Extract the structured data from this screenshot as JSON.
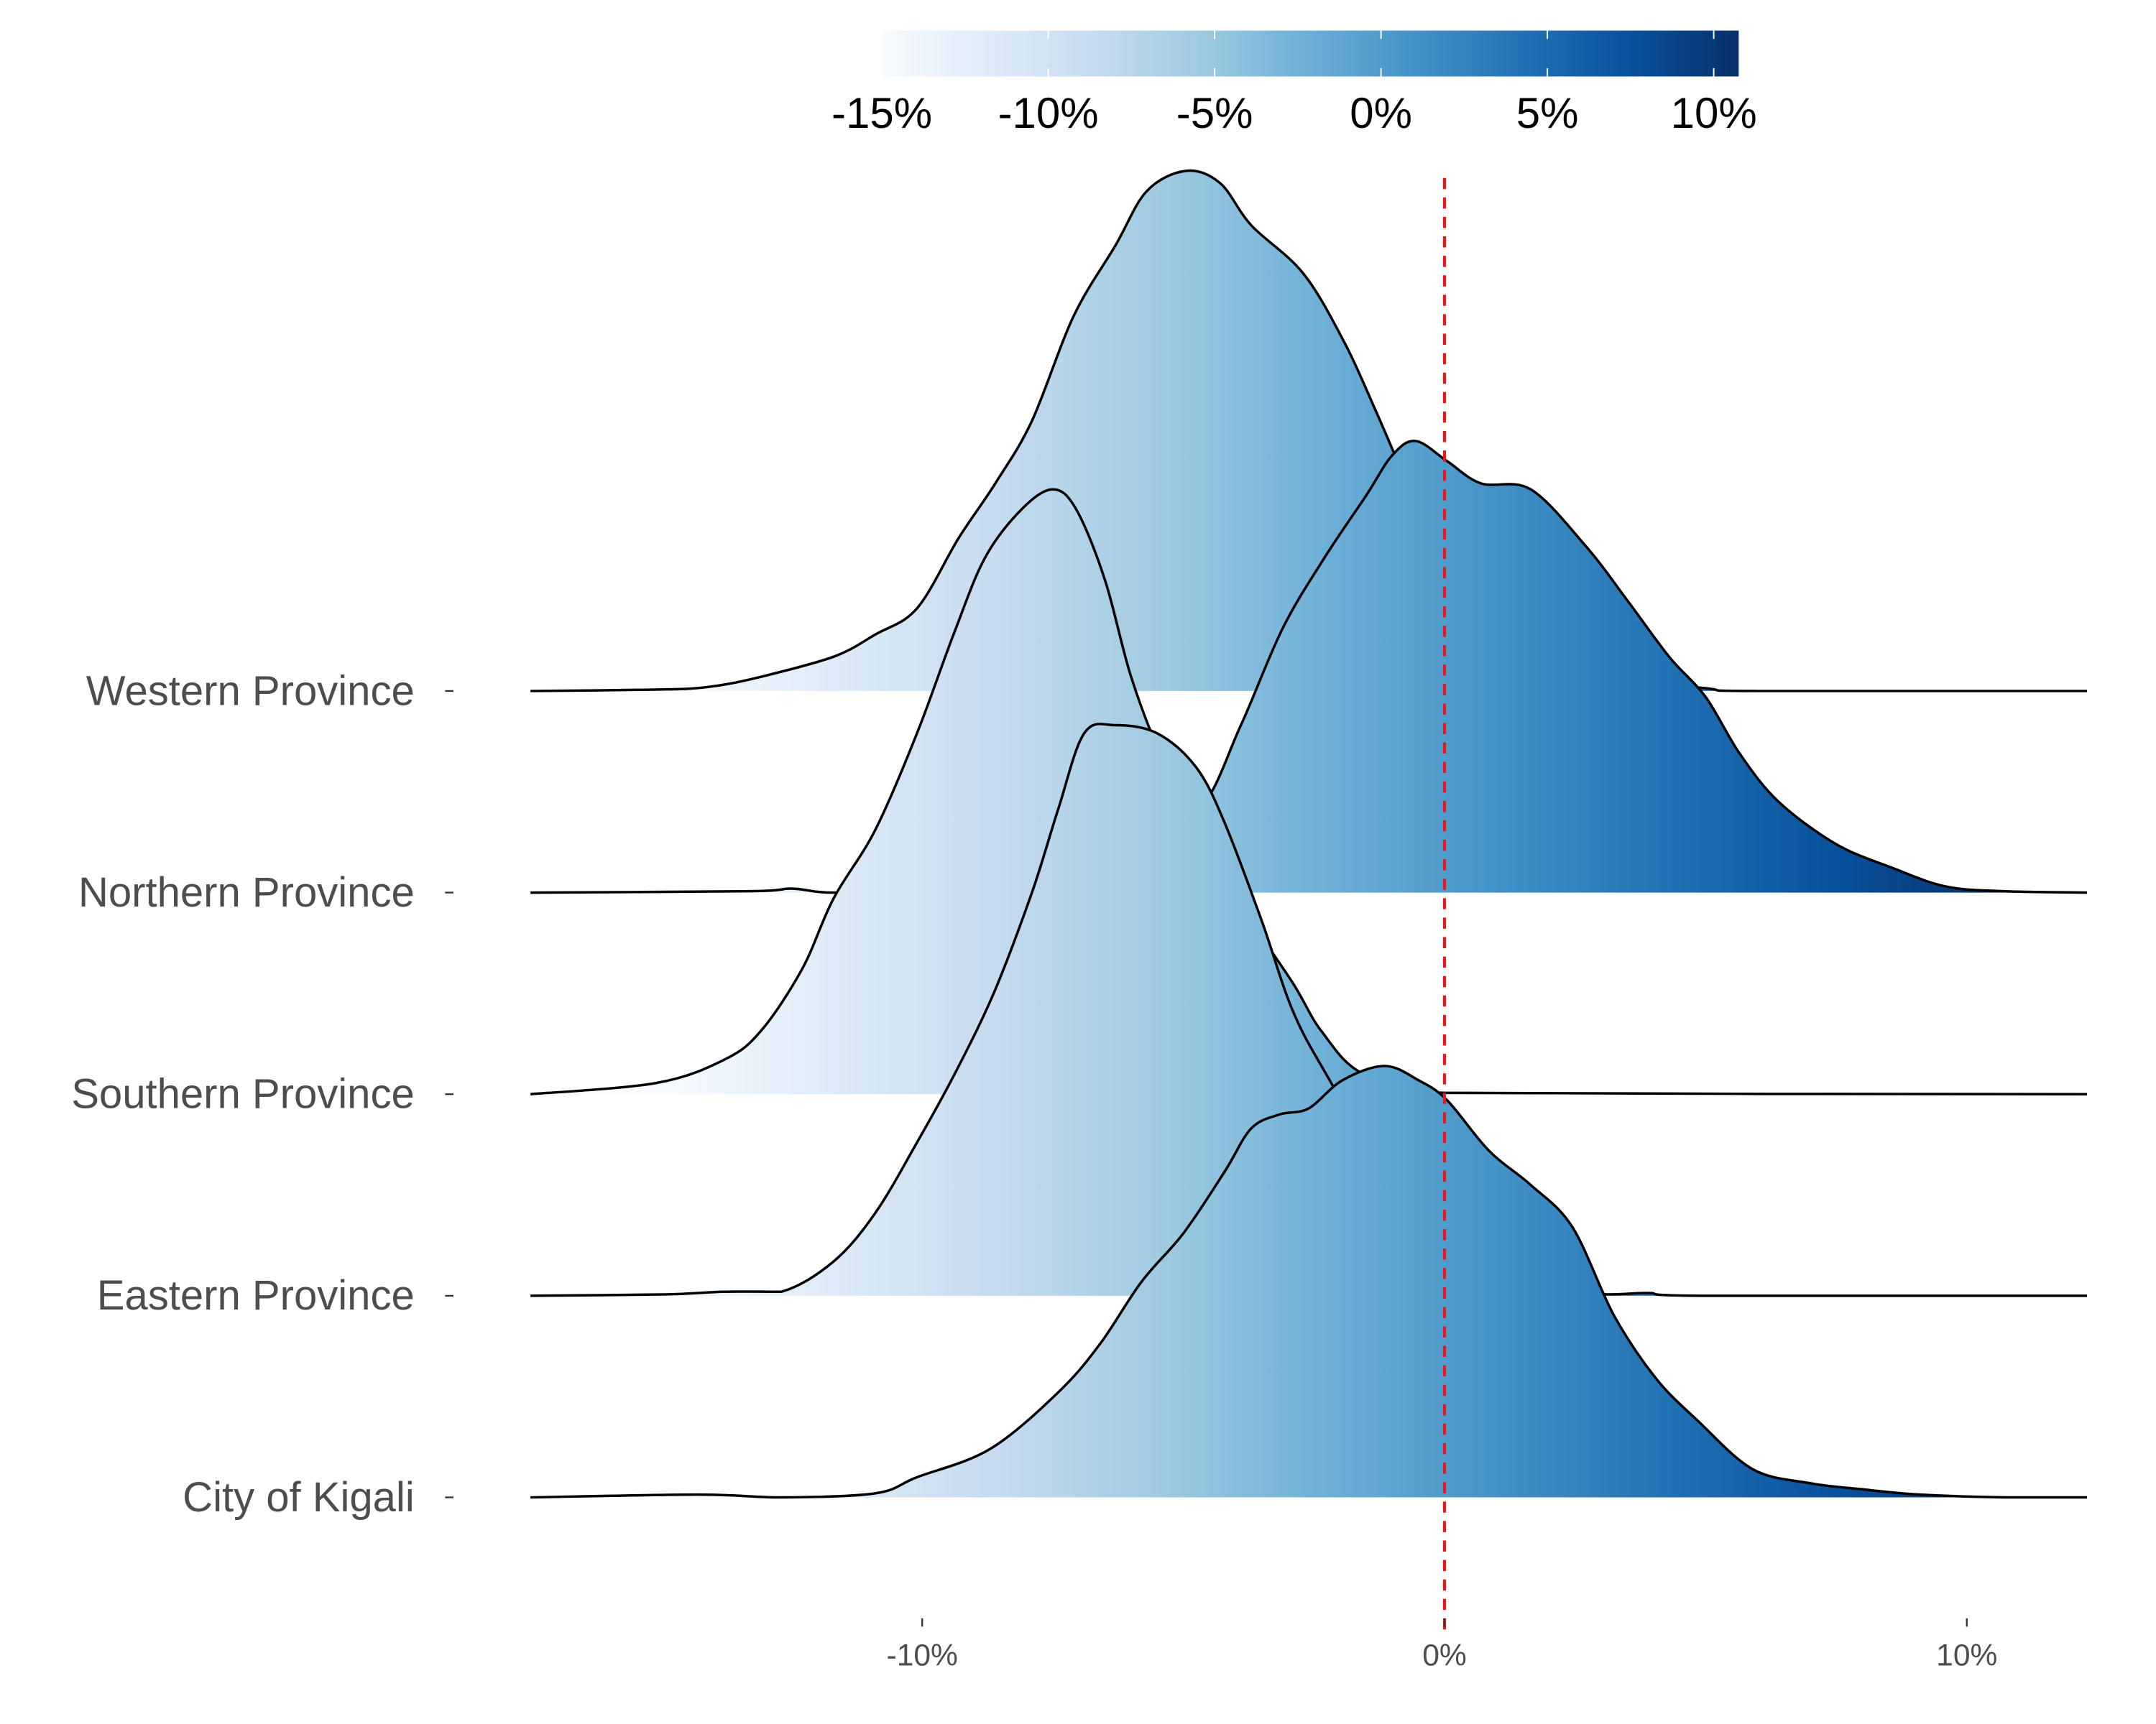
{
  "chart_data": {
    "type": "ridgeline",
    "title": "",
    "xlabel": "",
    "ylabel": "",
    "xlim": [
      -17.5,
      12.3
    ],
    "x_ticks": [
      -10,
      0,
      10
    ],
    "x_tick_labels": [
      "-10%",
      "0%",
      "10%"
    ],
    "reference_line": {
      "x": 0,
      "color": "#e41a1c",
      "style": "dashed"
    },
    "colorbar": {
      "range": [
        -15,
        10.75
      ],
      "ticks": [
        -15,
        -10,
        -5,
        0,
        5,
        10
      ],
      "tick_labels": [
        "-15%",
        "-10%",
        "-5%",
        "0%",
        "5%",
        "10%"
      ],
      "palette": [
        "#f7fbff",
        "#deebf7",
        "#c6dbef",
        "#9ecae1",
        "#6baed6",
        "#4292c6",
        "#2171b5",
        "#08519c",
        "#08306b"
      ],
      "position": "top"
    },
    "series": [
      {
        "name": "Western Province",
        "x": [
          -17.5,
          -15.1,
          -14.1,
          -13.1,
          -11.7,
          -10.9,
          -10.1,
          -9.3,
          -8.6,
          -7.9,
          -7.1,
          -6.3,
          -5.7,
          -4.95,
          -4.3,
          -3.7,
          -2.7,
          -1.9,
          -1.3,
          -0.9,
          -0.5,
          0.3,
          1.7,
          3.0,
          5.0,
          6.0,
          12.3
        ],
        "density": [
          0,
          0.007,
          0.02,
          0.07,
          0.17,
          0.28,
          0.41,
          0.76,
          1.03,
          1.34,
          1.86,
          2.21,
          2.48,
          2.58,
          2.52,
          2.31,
          2.07,
          1.72,
          1.38,
          1.14,
          0.9,
          0.55,
          0.24,
          0.08,
          0.014,
          0,
          0
        ]
      },
      {
        "name": "Northern Province",
        "x": [
          -17.5,
          -13.3,
          -12.5,
          -11.7,
          -10,
          -8,
          -6,
          -4.7,
          -3.9,
          -3.1,
          -2.3,
          -1.5,
          -1.0,
          -0.55,
          0.05,
          0.7,
          1.65,
          2.7,
          3.5,
          4.3,
          5.0,
          5.65,
          6.4,
          7.5,
          8.6,
          9.6,
          10.7,
          12.3
        ],
        "density": [
          0,
          0.007,
          0.02,
          0.0,
          0.02,
          0.1,
          0.24,
          0.41,
          0.83,
          1.31,
          1.66,
          1.97,
          2.17,
          2.24,
          2.14,
          2.03,
          2.0,
          1.72,
          1.45,
          1.17,
          0.97,
          0.69,
          0.45,
          0.24,
          0.12,
          0.03,
          0.007,
          0
        ]
      },
      {
        "name": "Southern Province",
        "x": [
          -17.5,
          -15.1,
          -13.8,
          -13.1,
          -12.3,
          -11.7,
          -10.9,
          -10.1,
          -9.4,
          -8.8,
          -8.1,
          -7.5,
          -7.05,
          -6.5,
          -6.0,
          -5.4,
          -4.7,
          -3.8,
          -2.9,
          -2.35,
          -1.55,
          0,
          12.3
        ],
        "density": [
          0,
          0.055,
          0.17,
          0.31,
          0.62,
          0.97,
          1.31,
          1.79,
          2.28,
          2.66,
          2.9,
          3.0,
          2.9,
          2.55,
          2.07,
          1.66,
          1.31,
          0.9,
          0.55,
          0.31,
          0.1,
          0.007,
          0
        ]
      },
      {
        "name": "Eastern Province",
        "x": [
          -17.5,
          -14.9,
          -13.8,
          -12.7,
          -11.7,
          -10.9,
          -10.1,
          -9.3,
          -8.6,
          -7.9,
          -7.4,
          -6.9,
          -6.3,
          -5.5,
          -4.75,
          -4.2,
          -3.5,
          -2.9,
          -2.2,
          -1.0,
          1.0,
          3.1,
          3.9,
          5.0,
          12.3
        ],
        "density": [
          0,
          0.007,
          0.02,
          0.02,
          0.17,
          0.41,
          0.76,
          1.14,
          1.52,
          2.0,
          2.41,
          2.79,
          2.83,
          2.79,
          2.62,
          2.34,
          1.86,
          1.41,
          1.07,
          0.55,
          0.14,
          0.007,
          0.014,
          0,
          0
        ]
      },
      {
        "name": "City of Kigali",
        "x": [
          -17.5,
          -14.3,
          -12.7,
          -10.9,
          -10.1,
          -8.7,
          -7.4,
          -6.6,
          -5.8,
          -5.0,
          -4.2,
          -3.7,
          -3.15,
          -2.6,
          -1.95,
          -1.15,
          -0.5,
          0.05,
          0.85,
          1.65,
          2.45,
          3.25,
          4.05,
          4.85,
          5.9,
          7.0,
          8.0,
          9.1,
          10.7,
          12.3
        ],
        "density": [
          0,
          0.014,
          0,
          0.02,
          0.1,
          0.24,
          0.52,
          0.76,
          1.07,
          1.31,
          1.62,
          1.83,
          1.9,
          1.93,
          2.07,
          2.14,
          2.07,
          1.97,
          1.72,
          1.55,
          1.34,
          0.9,
          0.59,
          0.38,
          0.14,
          0.07,
          0.04,
          0.014,
          0,
          0
        ]
      }
    ]
  }
}
